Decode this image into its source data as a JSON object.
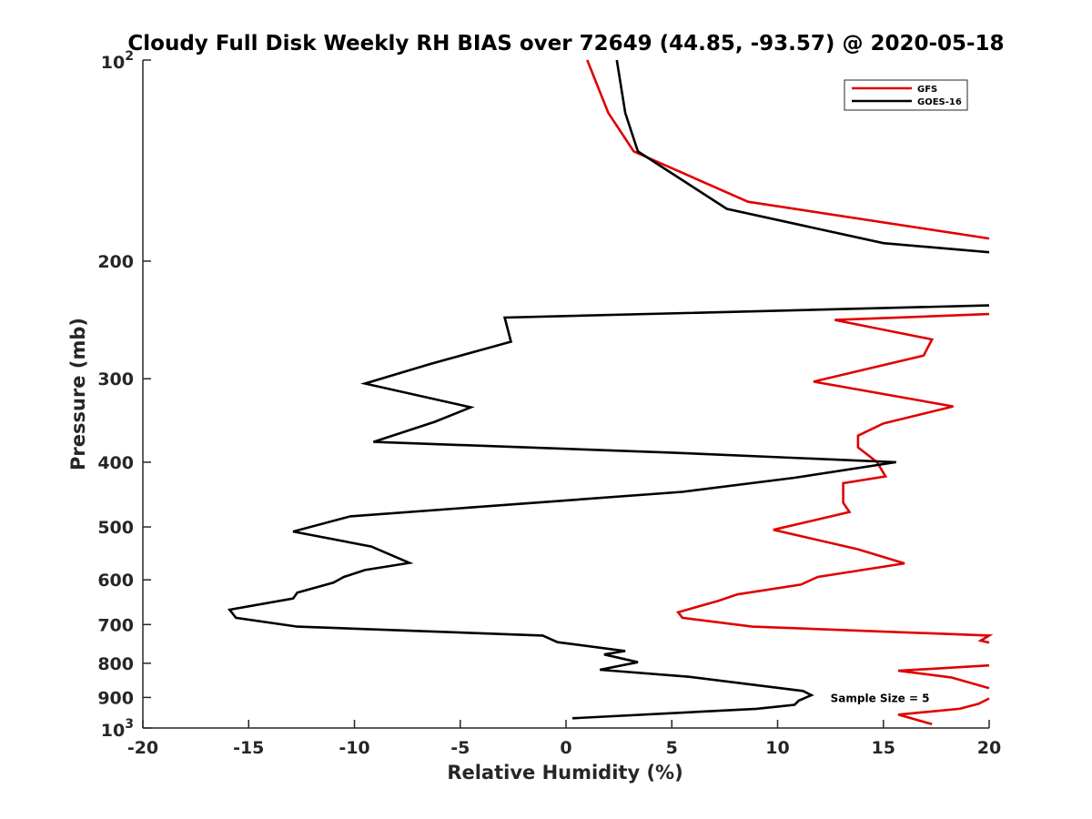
{
  "chart_data": {
    "type": "line",
    "title": "Cloudy Full Disk Weekly RH BIAS over 72649 (44.85, -93.57) @ 2020-05-18",
    "xlabel": "Relative Humidity (%)",
    "ylabel": "Pressure (mb)",
    "xlim": [
      -20,
      20
    ],
    "ylim": [
      100,
      1000
    ],
    "yscale": "log",
    "yreversed": true,
    "grid": false,
    "legend_position": "top-right",
    "x_ticks": [
      "-20",
      "-15",
      "-10",
      "-5",
      "0",
      "5",
      "10",
      "15",
      "20"
    ],
    "y_ticks": [
      {
        "value": 100,
        "base": "10",
        "exp": "2"
      },
      {
        "value": 200,
        "label": "200"
      },
      {
        "value": 300,
        "label": "300"
      },
      {
        "value": 400,
        "label": "400"
      },
      {
        "value": 500,
        "label": "500"
      },
      {
        "value": 600,
        "label": "600"
      },
      {
        "value": 700,
        "label": "700"
      },
      {
        "value": 800,
        "label": "800"
      },
      {
        "value": 900,
        "label": "900"
      },
      {
        "value": 1000,
        "base": "10",
        "exp": "3"
      }
    ],
    "annotation": {
      "text": "Sample Size = 5",
      "x": 12.5,
      "y": 900
    },
    "series": [
      {
        "name": "GFS",
        "color": "#e00000",
        "points": [
          [
            1.0,
            100
          ],
          [
            2.0,
            120
          ],
          [
            3.2,
            137
          ],
          [
            8.6,
            163
          ],
          [
            20.0,
            185
          ],
          [
            null,
            null
          ],
          [
            20.0,
            240
          ],
          [
            12.7,
            245
          ],
          [
            17.3,
            262
          ],
          [
            16.9,
            277
          ],
          [
            11.7,
            303
          ],
          [
            18.3,
            330
          ],
          [
            15.0,
            350
          ],
          [
            13.8,
            365
          ],
          [
            13.8,
            380
          ],
          [
            14.7,
            400
          ],
          [
            15.1,
            420
          ],
          [
            13.1,
            430
          ],
          [
            13.1,
            460
          ],
          [
            13.4,
            475
          ],
          [
            9.8,
            505
          ],
          [
            13.8,
            540
          ],
          [
            16.0,
            567
          ],
          [
            11.9,
            594
          ],
          [
            11.1,
            610
          ],
          [
            8.1,
            631
          ],
          [
            7.2,
            645
          ],
          [
            5.3,
            671
          ],
          [
            5.5,
            684
          ],
          [
            8.8,
            705
          ],
          [
            20.0,
            727
          ],
          [
            19.6,
            740
          ],
          [
            20.0,
            745
          ],
          [
            null,
            null
          ],
          [
            20.0,
            806
          ],
          [
            15.7,
            821
          ],
          [
            18.2,
            840
          ],
          [
            20.0,
            872
          ],
          [
            null,
            null
          ],
          [
            20.0,
            903
          ],
          [
            19.5,
            920
          ],
          [
            18.6,
            936
          ],
          [
            15.7,
            955
          ],
          [
            17.3,
            987
          ]
        ]
      },
      {
        "name": "GOES-16",
        "color": "#000000",
        "points": [
          [
            2.4,
            100
          ],
          [
            2.8,
            120
          ],
          [
            3.4,
            137
          ],
          [
            7.6,
            167
          ],
          [
            15.0,
            188
          ],
          [
            20.0,
            194
          ],
          [
            null,
            null
          ],
          [
            20.0,
            233
          ],
          [
            -2.9,
            243
          ],
          [
            -2.6,
            264
          ],
          [
            -6.4,
            285
          ],
          [
            -9.5,
            305
          ],
          [
            -4.5,
            331
          ],
          [
            -6.2,
            348
          ],
          [
            -9.1,
            373
          ],
          [
            5.0,
            387
          ],
          [
            15.6,
            400
          ],
          [
            10.8,
            422
          ],
          [
            5.5,
            443
          ],
          [
            -10.2,
            482
          ],
          [
            -12.9,
            508
          ],
          [
            -9.2,
            535
          ],
          [
            -7.4,
            566
          ],
          [
            -9.5,
            580
          ],
          [
            -10.5,
            594
          ],
          [
            -11.0,
            606
          ],
          [
            -12.7,
            627
          ],
          [
            -12.9,
            640
          ],
          [
            -15.9,
            665
          ],
          [
            -15.6,
            684
          ],
          [
            -12.7,
            705
          ],
          [
            -1.1,
            727
          ],
          [
            -0.4,
            744
          ],
          [
            2.8,
            767
          ],
          [
            1.8,
            776
          ],
          [
            3.4,
            797
          ],
          [
            1.6,
            818
          ],
          [
            5.8,
            838
          ],
          [
            11.2,
            880
          ],
          [
            11.6,
            893
          ],
          [
            11.0,
            910
          ],
          [
            10.8,
            923
          ],
          [
            9.0,
            936
          ],
          [
            0.3,
            967
          ]
        ]
      }
    ]
  }
}
